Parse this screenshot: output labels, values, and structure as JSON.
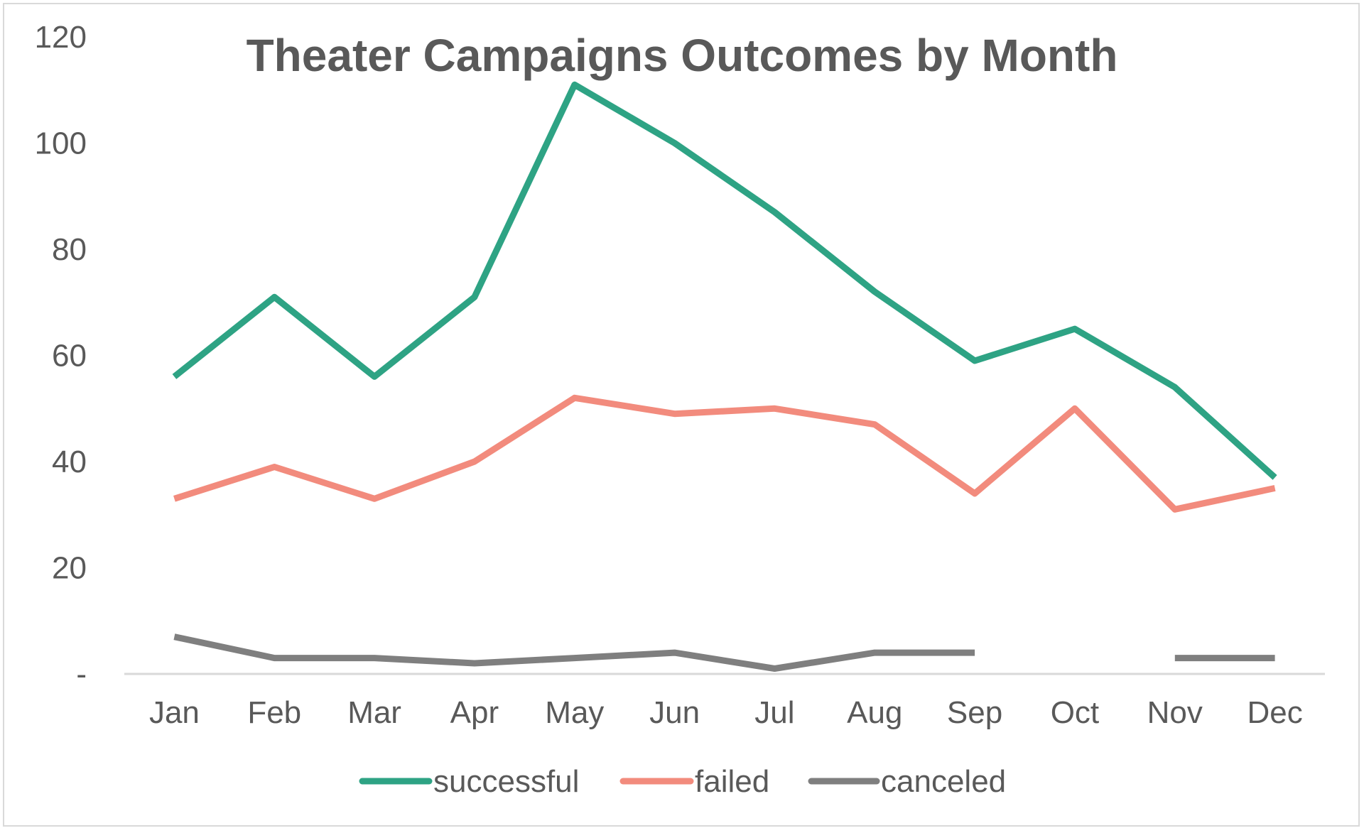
{
  "chart_data": {
    "type": "line",
    "title": "Theater Campaigns Outcomes by Month",
    "categories": [
      "Jan",
      "Feb",
      "Mar",
      "Apr",
      "May",
      "Jun",
      "Jul",
      "Aug",
      "Sep",
      "Oct",
      "Nov",
      "Dec"
    ],
    "y_ticks": [
      "-",
      "20",
      "40",
      "60",
      "80",
      "100",
      "120"
    ],
    "ylim": [
      0,
      120
    ],
    "grid": false,
    "legend_position": "bottom",
    "series": [
      {
        "name": "successful",
        "color": "#2ea384",
        "values": [
          56,
          71,
          56,
          71,
          111,
          100,
          87,
          72,
          59,
          65,
          54,
          37
        ]
      },
      {
        "name": "failed",
        "color": "#f28b7d",
        "values": [
          33,
          39,
          33,
          40,
          52,
          49,
          50,
          47,
          34,
          50,
          31,
          35
        ]
      },
      {
        "name": "canceled",
        "color": "#7f7f7f",
        "values": [
          7,
          3,
          3,
          2,
          3,
          4,
          1,
          4,
          4,
          null,
          3,
          3
        ]
      }
    ]
  }
}
